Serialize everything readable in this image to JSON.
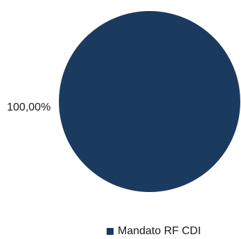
{
  "chart_data": {
    "type": "pie",
    "categories": [
      "Mandato RF CDI"
    ],
    "values": [
      100
    ],
    "data_labels": [
      "100,00%"
    ],
    "colors": [
      "#1b3a5f"
    ],
    "legend_position": "bottom"
  },
  "legend": {
    "items": [
      {
        "label": "Mandato RF CDI",
        "color": "#1b3a5f"
      }
    ]
  }
}
